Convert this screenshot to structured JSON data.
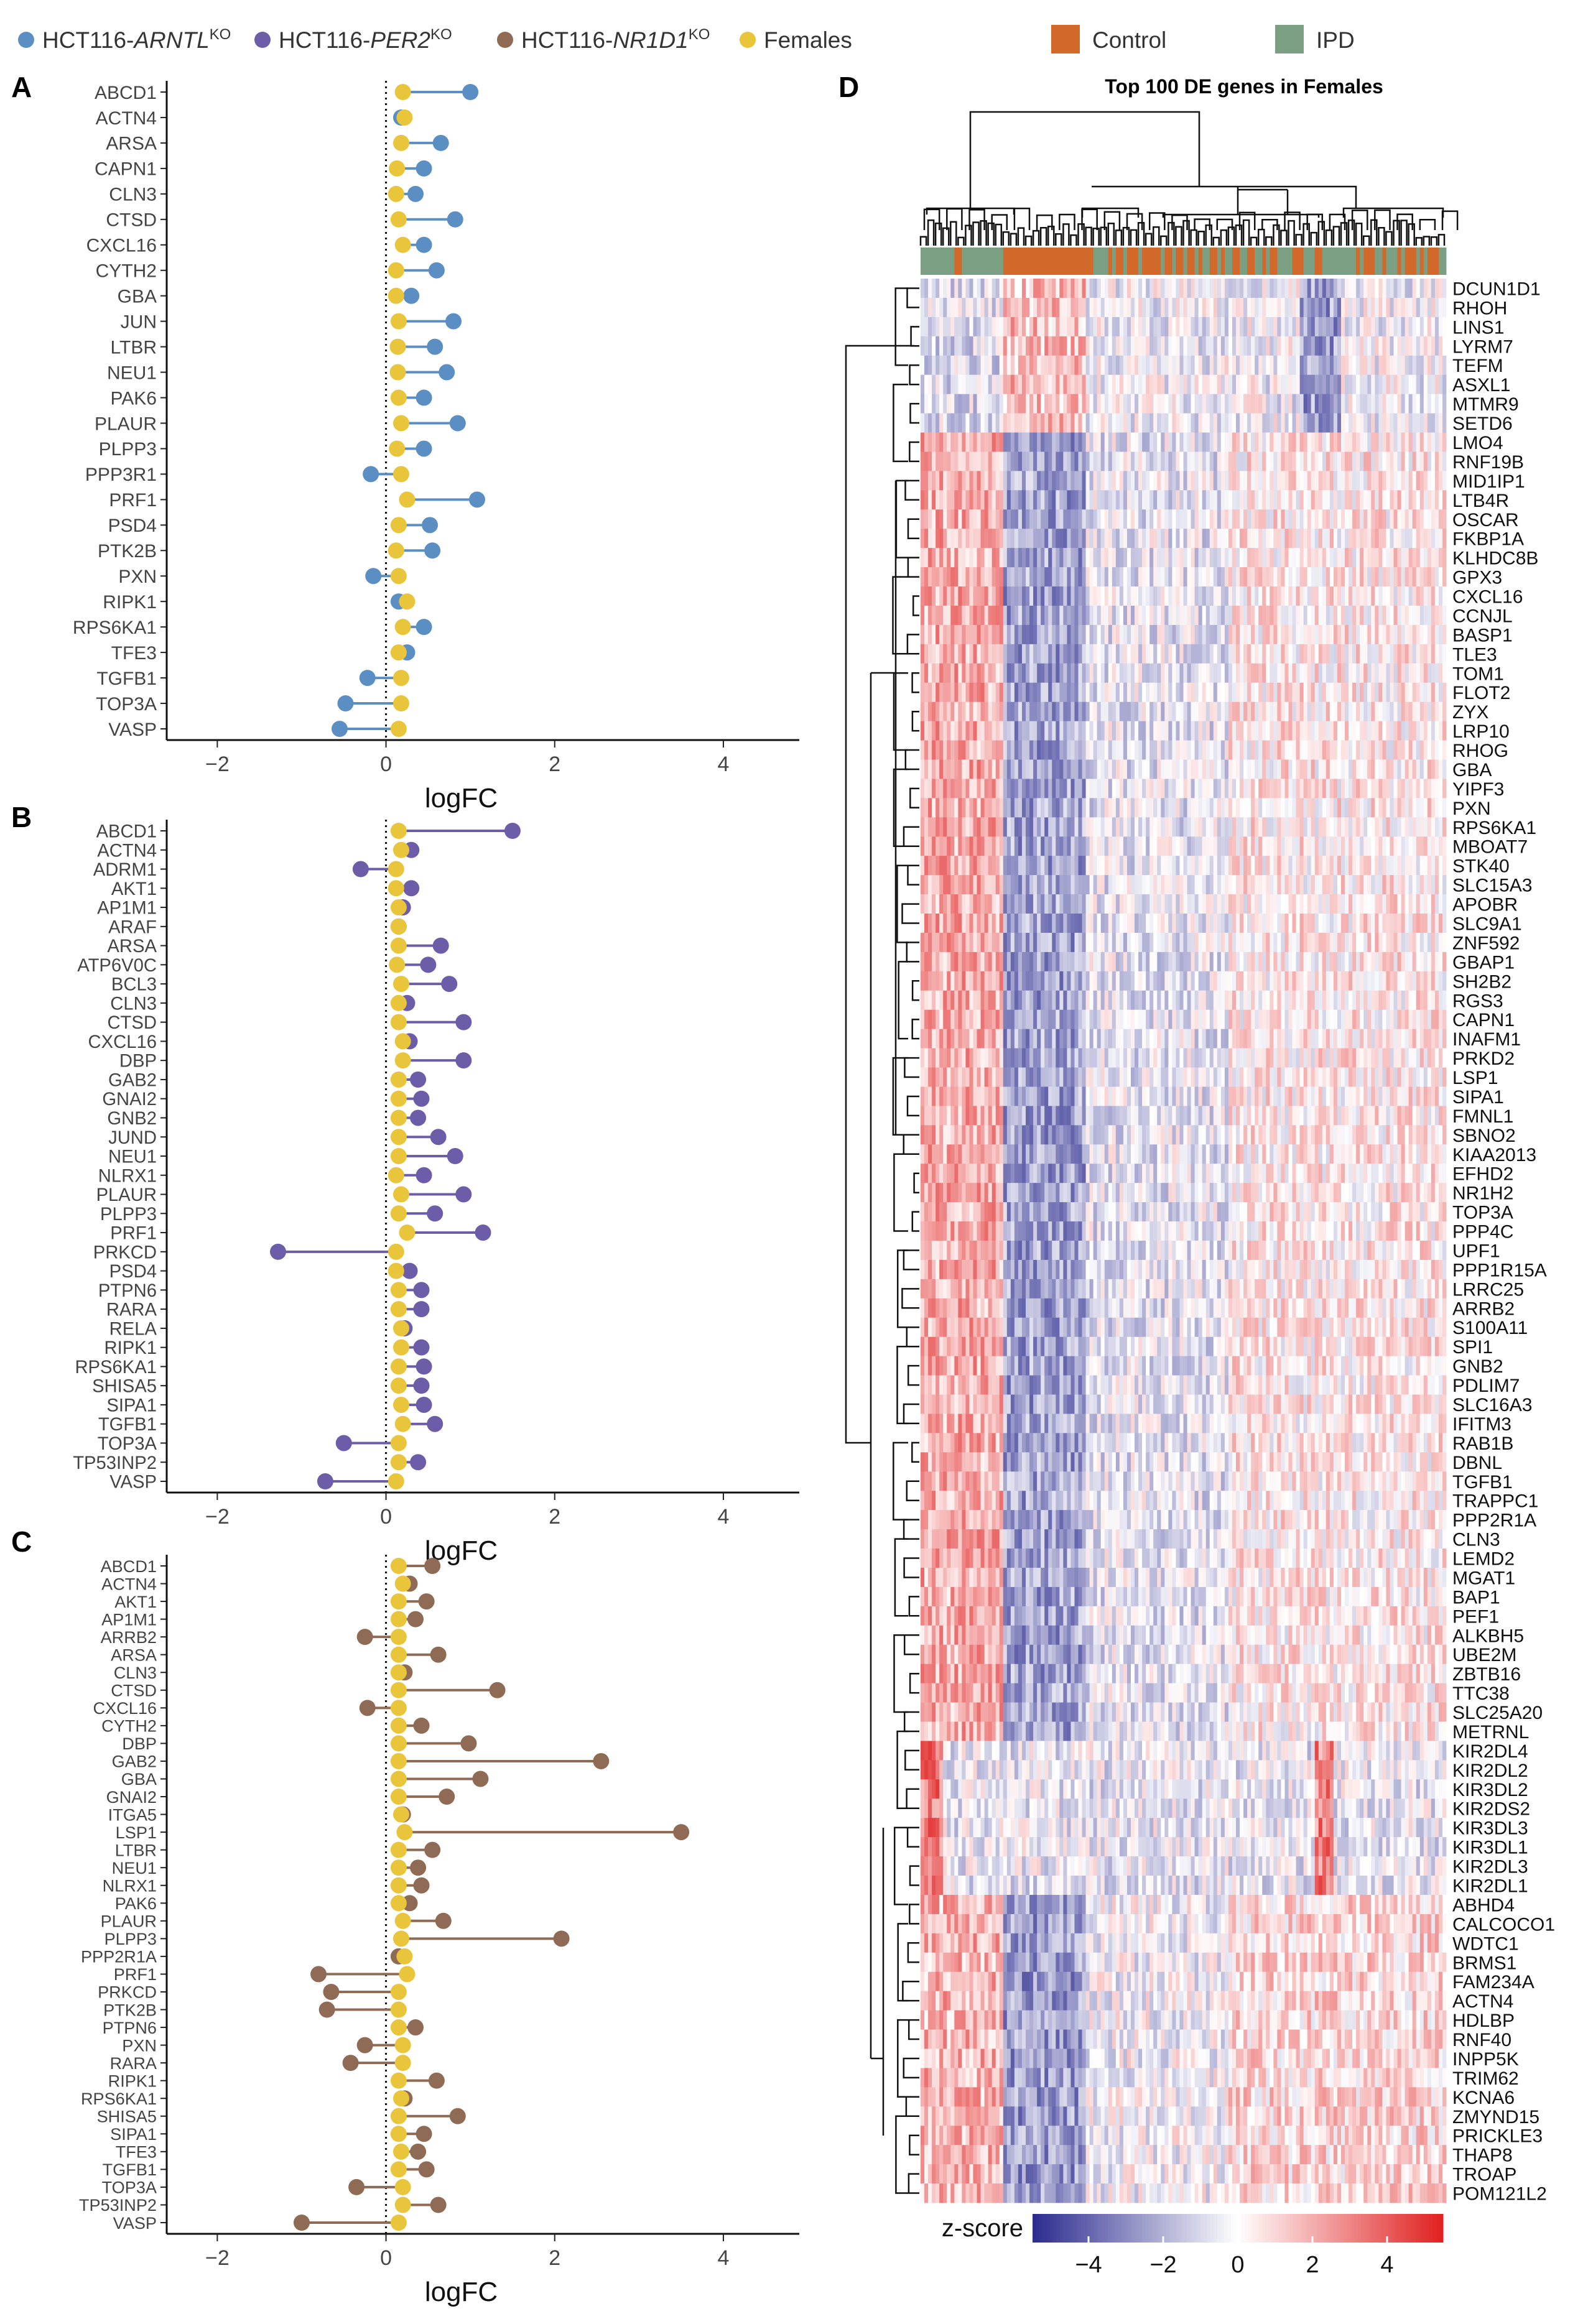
{
  "legend_top": {
    "series": [
      {
        "prefix": "HCT116-",
        "gene": "ARNTL",
        "sup": "KO",
        "color": "#5b8fc4"
      },
      {
        "prefix": "HCT116-",
        "gene": "PER2",
        "sup": "KO",
        "color": "#6d5ca8"
      },
      {
        "prefix": "HCT116-",
        "gene": "NR1D1",
        "sup": "KO",
        "color": "#8f6a55"
      },
      {
        "prefix": "",
        "gene": "",
        "sup": "",
        "label": "Females",
        "color": "#e8c53a"
      }
    ],
    "heatmap_groups": [
      {
        "label": "Control",
        "color": "#d2692a"
      },
      {
        "label": "IPD",
        "color": "#7a9f83"
      }
    ]
  },
  "chart_data": [
    {
      "type": "lollipop",
      "panel": "A",
      "xlabel": "logFC",
      "xlim": [
        -2.6,
        4.9
      ],
      "xticks": [
        -2,
        0,
        2,
        4
      ],
      "series_colors": {
        "ko": "#5b8fc4",
        "females": "#e8c53a"
      },
      "categories": [
        "ABCD1",
        "ACTN4",
        "ARSA",
        "CAPN1",
        "CLN3",
        "CTSD",
        "CXCL16",
        "CYTH2",
        "GBA",
        "JUN",
        "LTBR",
        "NEU1",
        "PAK6",
        "PLAUR",
        "PLPP3",
        "PPP3R1",
        "PRF1",
        "PSD4",
        "PTK2B",
        "PXN",
        "RIPK1",
        "RPS6KA1",
        "TFE3",
        "TGFB1",
        "TOP3A",
        "VASP"
      ],
      "ko_values": [
        1.0,
        0.18,
        0.65,
        0.45,
        0.35,
        0.82,
        0.45,
        0.6,
        0.3,
        0.8,
        0.58,
        0.72,
        0.45,
        0.85,
        0.45,
        -0.18,
        1.08,
        0.52,
        0.55,
        -0.15,
        0.15,
        0.45,
        0.25,
        -0.22,
        -0.48,
        -0.55
      ],
      "female_values": [
        0.2,
        0.22,
        0.18,
        0.13,
        0.12,
        0.15,
        0.2,
        0.12,
        0.12,
        0.15,
        0.14,
        0.14,
        0.15,
        0.18,
        0.13,
        0.18,
        0.25,
        0.15,
        0.12,
        0.15,
        0.25,
        0.2,
        0.15,
        0.18,
        0.18,
        0.15
      ]
    },
    {
      "type": "lollipop",
      "panel": "B",
      "xlabel": "logFC",
      "xlim": [
        -2.6,
        4.9
      ],
      "xticks": [
        -2,
        0,
        2,
        4
      ],
      "series_colors": {
        "ko": "#6d5ca8",
        "females": "#e8c53a"
      },
      "categories": [
        "ABCD1",
        "ACTN4",
        "ADRM1",
        "AKT1",
        "AP1M1",
        "ARAF",
        "ARSA",
        "ATP6V0C",
        "BCL3",
        "CLN3",
        "CTSD",
        "CXCL16",
        "DBP",
        "GAB2",
        "GNAI2",
        "GNB2",
        "JUND",
        "NEU1",
        "NLRX1",
        "PLAUR",
        "PLPP3",
        "PRF1",
        "PRKCD",
        "PSD4",
        "PTPN6",
        "RARA",
        "RELA",
        "RIPK1",
        "RPS6KA1",
        "SHISA5",
        "SIPA1",
        "TGFB1",
        "TOP3A",
        "TP53INP2",
        "VASP"
      ],
      "ko_values": [
        1.5,
        0.3,
        -0.3,
        0.3,
        0.2,
        0.15,
        0.65,
        0.5,
        0.75,
        0.25,
        0.92,
        0.28,
        0.92,
        0.38,
        0.42,
        0.38,
        0.62,
        0.82,
        0.45,
        0.92,
        0.58,
        1.15,
        -1.28,
        0.28,
        0.42,
        0.42,
        0.22,
        0.42,
        0.45,
        0.42,
        0.45,
        0.58,
        -0.5,
        0.38,
        -0.72
      ],
      "female_values": [
        0.15,
        0.18,
        0.12,
        0.12,
        0.15,
        0.15,
        0.15,
        0.13,
        0.18,
        0.15,
        0.15,
        0.2,
        0.2,
        0.15,
        0.15,
        0.15,
        0.15,
        0.15,
        0.12,
        0.18,
        0.15,
        0.25,
        0.12,
        0.12,
        0.15,
        0.15,
        0.18,
        0.18,
        0.15,
        0.15,
        0.18,
        0.2,
        0.15,
        0.15,
        0.12
      ]
    },
    {
      "type": "lollipop",
      "panel": "C",
      "xlabel": "logFC",
      "xlim": [
        -2.6,
        4.9
      ],
      "xticks": [
        -2,
        0,
        2,
        4
      ],
      "series_colors": {
        "ko": "#8f6a55",
        "females": "#e8c53a"
      },
      "categories": [
        "ABCD1",
        "ACTN4",
        "AKT1",
        "AP1M1",
        "ARRB2",
        "ARSA",
        "CLN3",
        "CTSD",
        "CXCL16",
        "CYTH2",
        "DBP",
        "GAB2",
        "GBA",
        "GNAI2",
        "ITGA5",
        "LSP1",
        "LTBR",
        "NEU1",
        "NLRX1",
        "PAK6",
        "PLAUR",
        "PLPP3",
        "PPP2R1A",
        "PRF1",
        "PRKCD",
        "PTK2B",
        "PTPN6",
        "PXN",
        "RARA",
        "RIPK1",
        "RPS6KA1",
        "SHISA5",
        "SIPA1",
        "TFE3",
        "TGFB1",
        "TOP3A",
        "TP53INP2",
        "VASP"
      ],
      "ko_values": [
        0.55,
        0.28,
        0.48,
        0.35,
        -0.25,
        0.62,
        0.22,
        1.32,
        -0.22,
        0.42,
        0.98,
        2.55,
        1.12,
        0.72,
        0.2,
        3.5,
        0.55,
        0.38,
        0.42,
        0.28,
        0.68,
        2.08,
        0.15,
        -0.8,
        -0.65,
        -0.7,
        0.35,
        -0.25,
        -0.42,
        0.6,
        0.22,
        0.85,
        0.45,
        0.38,
        0.48,
        -0.35,
        0.62,
        -1.0
      ],
      "female_values": [
        0.15,
        0.2,
        0.15,
        0.15,
        0.15,
        0.15,
        0.15,
        0.15,
        0.15,
        0.15,
        0.15,
        0.15,
        0.15,
        0.15,
        0.18,
        0.22,
        0.15,
        0.15,
        0.15,
        0.15,
        0.2,
        0.18,
        0.22,
        0.25,
        0.15,
        0.15,
        0.15,
        0.2,
        0.2,
        0.15,
        0.18,
        0.15,
        0.15,
        0.18,
        0.15,
        0.2,
        0.2,
        0.15
      ]
    },
    {
      "type": "heatmap",
      "panel": "D",
      "title": "Top 100 DE genes in Females",
      "colorbar": {
        "label": "z-score",
        "ticks": [
          -4,
          -2,
          0,
          2,
          4
        ],
        "range": [
          -5.5,
          5.5
        ],
        "low": "#2b2b8f",
        "mid": "#ffffff",
        "high": "#e0201f"
      },
      "rows": [
        "DCUN1D1",
        "RHOH",
        "LINS1",
        "LYRM7",
        "TEFM",
        "ASXL1",
        "MTMR9",
        "SETD6",
        "LMO4",
        "RNF19B",
        "MID1IP1",
        "LTB4R",
        "OSCAR",
        "FKBP1A",
        "KLHDC8B",
        "GPX3",
        "CXCL16",
        "CCNJL",
        "BASP1",
        "TLE3",
        "TOM1",
        "FLOT2",
        "ZYX",
        "LRP10",
        "RHOG",
        "GBA",
        "YIPF3",
        "PXN",
        "RPS6KA1",
        "MBOAT7",
        "STK40",
        "SLC15A3",
        "APOBR",
        "SLC9A1",
        "ZNF592",
        "GBAP1",
        "SH2B2",
        "RGS3",
        "CAPN1",
        "INAFM1",
        "PRKD2",
        "LSP1",
        "SIPA1",
        "FMNL1",
        "SBNO2",
        "KIAA2013",
        "EFHD2",
        "NR1H2",
        "TOP3A",
        "PPP4C",
        "UPF1",
        "PPP1R15A",
        "LRRC25",
        "ARRB2",
        "S100A11",
        "SPI1",
        "GNB2",
        "PDLIM7",
        "SLC16A3",
        "IFITM3",
        "RAB1B",
        "DBNL",
        "TGFB1",
        "TRAPPC1",
        "PPP2R1A",
        "CLN3",
        "LEMD2",
        "MGAT1",
        "BAP1",
        "PEF1",
        "ALKBH5",
        "UBE2M",
        "ZBTB16",
        "TTC38",
        "SLC25A20",
        "METRNL",
        "KIR2DL4",
        "KIR2DL2",
        "KIR3DL2",
        "KIR2DS2",
        "KIR3DL3",
        "KIR3DL1",
        "KIR2DL3",
        "KIR2DL1",
        "ABHD4",
        "CALCOCO1",
        "WDTC1",
        "BRMS1",
        "FAM234A",
        "ACTN4",
        "HDLBP",
        "RNF40",
        "INPP5K",
        "TRIM62",
        "KCNA6",
        "ZMYND15",
        "PRICKLE3",
        "THAP8",
        "TROAP",
        "POM121L2"
      ]
    }
  ]
}
